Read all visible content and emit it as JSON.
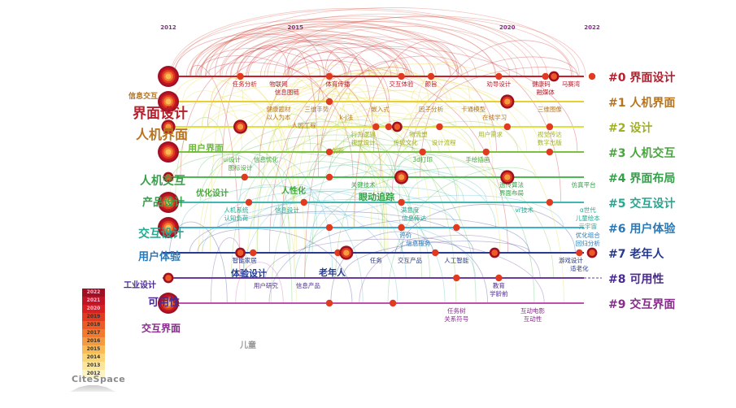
{
  "chart_data": {
    "type": "timeline",
    "title": "",
    "x_axis": {
      "ticks": [
        "2012",
        "2015",
        "2020",
        "2022"
      ],
      "range": [
        2012,
        2022
      ]
    },
    "clusters": [
      {
        "id": "#0",
        "label": "界面设计",
        "color": "#b5202e",
        "line": "#c8202a"
      },
      {
        "id": "#1",
        "label": "人机界面",
        "color": "#b8741c",
        "line": "#e8d030"
      },
      {
        "id": "#2",
        "label": "设计",
        "color": "#a0b025",
        "line": "#e0e040"
      },
      {
        "id": "#3",
        "label": "人机交互",
        "color": "#45a83a",
        "line": "#7cc040"
      },
      {
        "id": "#4",
        "label": "界面布局",
        "color": "#35a04a",
        "line": "#4cb850"
      },
      {
        "id": "#5",
        "label": "交互设计",
        "color": "#25a890",
        "line": "#40b8b0"
      },
      {
        "id": "#6",
        "label": "用户体验",
        "color": "#2a78b5",
        "line": "#40b0d0"
      },
      {
        "id": "#7",
        "label": "老年人",
        "color": "#253a8f",
        "line": "#2a3a90"
      },
      {
        "id": "#8",
        "label": "可用性",
        "color": "#4a2a8f",
        "line": "#6a3aa0"
      },
      {
        "id": "#9",
        "label": "交互界面",
        "color": "#8a2a8f",
        "line": "#c050b0"
      }
    ],
    "nodes": [
      {
        "cluster": 0,
        "year": 2012,
        "weight": 5
      },
      {
        "cluster": 0,
        "year": 2013.7,
        "weight": 1
      },
      {
        "cluster": 0,
        "year": 2015.8,
        "weight": 1
      },
      {
        "cluster": 0,
        "year": 2017.5,
        "weight": 1
      },
      {
        "cluster": 0,
        "year": 2018.2,
        "weight": 1
      },
      {
        "cluster": 0,
        "year": 2019.8,
        "weight": 1
      },
      {
        "cluster": 0,
        "year": 2020.9,
        "weight": 1
      },
      {
        "cluster": 0,
        "year": 2021.1,
        "weight": 2
      },
      {
        "cluster": 0,
        "year": 2022,
        "weight": 1
      },
      {
        "cluster": 1,
        "year": 2012,
        "weight": 5
      },
      {
        "cluster": 1,
        "year": 2015.8,
        "weight": 1
      },
      {
        "cluster": 1,
        "year": 2020,
        "weight": 3
      },
      {
        "cluster": 2,
        "year": 2012,
        "weight": 3
      },
      {
        "cluster": 2,
        "year": 2013.7,
        "weight": 3
      },
      {
        "cluster": 2,
        "year": 2016.9,
        "weight": 1
      },
      {
        "cluster": 2,
        "year": 2017.2,
        "weight": 1
      },
      {
        "cluster": 2,
        "year": 2017.4,
        "weight": 2
      },
      {
        "cluster": 2,
        "year": 2018.4,
        "weight": 1
      },
      {
        "cluster": 2,
        "year": 2020,
        "weight": 1
      },
      {
        "cluster": 2,
        "year": 2021,
        "weight": 1
      },
      {
        "cluster": 3,
        "year": 2012,
        "weight": 5
      },
      {
        "cluster": 3,
        "year": 2015.8,
        "weight": 1
      },
      {
        "cluster": 3,
        "year": 2018,
        "weight": 1
      },
      {
        "cluster": 3,
        "year": 2019.5,
        "weight": 1
      },
      {
        "cluster": 3,
        "year": 2021,
        "weight": 1
      },
      {
        "cluster": 4,
        "year": 2012,
        "weight": 2
      },
      {
        "cluster": 4,
        "year": 2013.8,
        "weight": 1
      },
      {
        "cluster": 4,
        "year": 2015.8,
        "weight": 1
      },
      {
        "cluster": 4,
        "year": 2017.5,
        "weight": 3
      },
      {
        "cluster": 4,
        "year": 2020,
        "weight": 3
      },
      {
        "cluster": 5,
        "year": 2012,
        "weight": 5
      },
      {
        "cluster": 5,
        "year": 2013.9,
        "weight": 1
      },
      {
        "cluster": 5,
        "year": 2015.2,
        "weight": 1
      },
      {
        "cluster": 5,
        "year": 2017.5,
        "weight": 1
      },
      {
        "cluster": 5,
        "year": 2021,
        "weight": 1
      },
      {
        "cluster": 6,
        "year": 2012,
        "weight": 5
      },
      {
        "cluster": 6,
        "year": 2015.8,
        "weight": 1
      },
      {
        "cluster": 6,
        "year": 2017.5,
        "weight": 1
      },
      {
        "cluster": 6,
        "year": 2018.8,
        "weight": 1
      },
      {
        "cluster": 7,
        "year": 2013.7,
        "weight": 2
      },
      {
        "cluster": 7,
        "year": 2014,
        "weight": 1
      },
      {
        "cluster": 7,
        "year": 2016,
        "weight": 1
      },
      {
        "cluster": 7,
        "year": 2016.2,
        "weight": 3
      },
      {
        "cluster": 7,
        "year": 2018.3,
        "weight": 1
      },
      {
        "cluster": 7,
        "year": 2019.7,
        "weight": 2
      },
      {
        "cluster": 7,
        "year": 2021.7,
        "weight": 1
      },
      {
        "cluster": 7,
        "year": 2022,
        "weight": 2
      },
      {
        "cluster": 8,
        "year": 2012,
        "weight": 2
      },
      {
        "cluster": 8,
        "year": 2018.8,
        "weight": 1
      },
      {
        "cluster": 8,
        "year": 2019.8,
        "weight": 1
      },
      {
        "cluster": 9,
        "year": 2012,
        "weight": 5
      },
      {
        "cluster": 9,
        "year": 2015.8,
        "weight": 1
      },
      {
        "cluster": 9,
        "year": 2017.3,
        "weight": 1
      }
    ],
    "labels": [
      {
        "cluster": 0,
        "year": 2013.8,
        "text": "任务分析"
      },
      {
        "cluster": 0,
        "year": 2014.6,
        "text": "物联网"
      },
      {
        "cluster": 0,
        "year": 2014.8,
        "text": "信息图链"
      },
      {
        "cluster": 0,
        "year": 2016.0,
        "text": "体育传播"
      },
      {
        "cluster": 0,
        "year": 2017.5,
        "text": "交互体验"
      },
      {
        "cluster": 0,
        "year": 2018.2,
        "text": "颜旨"
      },
      {
        "cluster": 0,
        "year": 2019.8,
        "text": "劝导设计"
      },
      {
        "cluster": 0,
        "year": 2020.8,
        "text": "健康码"
      },
      {
        "cluster": 0,
        "year": 2020.9,
        "text": "融媒体"
      },
      {
        "cluster": 0,
        "year": 2021.5,
        "text": "马赛湾"
      },
      {
        "cluster": 1,
        "year": 2014.6,
        "text": "健康题材"
      },
      {
        "cluster": 1,
        "year": 2014.6,
        "text": "以人为本"
      },
      {
        "cluster": 1,
        "year": 2015.5,
        "text": "三维手势"
      },
      {
        "cluster": 1,
        "year": 2015.2,
        "text": "人因工程"
      },
      {
        "cluster": 1,
        "year": 2016.2,
        "text": "k-j法"
      },
      {
        "cluster": 1,
        "year": 2017.0,
        "text": "嵌入式"
      },
      {
        "cluster": 1,
        "year": 2018.2,
        "text": "因子分析"
      },
      {
        "cluster": 1,
        "year": 2019.2,
        "text": "卡通模型"
      },
      {
        "cluster": 1,
        "year": 2019.7,
        "text": "在线学习"
      },
      {
        "cluster": 1,
        "year": 2021.0,
        "text": "三维图像"
      },
      {
        "cluster": 2,
        "year": 2016.6,
        "text": "行为逻辑"
      },
      {
        "cluster": 2,
        "year": 2016.6,
        "text": "视觉设计"
      },
      {
        "cluster": 2,
        "year": 2017.9,
        "text": "物流塑"
      },
      {
        "cluster": 2,
        "year": 2016.0,
        "text": "创新"
      },
      {
        "cluster": 2,
        "year": 2017.6,
        "text": "传统文化"
      },
      {
        "cluster": 2,
        "year": 2019.6,
        "text": "用户需求"
      },
      {
        "cluster": 2,
        "year": 2018.5,
        "text": "设计流程"
      },
      {
        "cluster": 2,
        "year": 2021.0,
        "text": "视觉传达"
      },
      {
        "cluster": 2,
        "year": 2021.0,
        "text": "数字出版"
      },
      {
        "cluster": 3,
        "year": 2013.5,
        "text": "ui设计"
      },
      {
        "cluster": 3,
        "year": 2013.7,
        "text": "图标设计"
      },
      {
        "cluster": 3,
        "year": 2014.3,
        "text": "信息优化"
      },
      {
        "cluster": 3,
        "year": 2018.0,
        "text": "3d打印"
      },
      {
        "cluster": 3,
        "year": 2019.3,
        "text": "手绘插画"
      },
      {
        "cluster": 4,
        "year": 2016.6,
        "text": "关键技术"
      },
      {
        "cluster": 4,
        "year": 2020.1,
        "text": "遗传算法"
      },
      {
        "cluster": 4,
        "year": 2020.1,
        "text": "界面布局"
      },
      {
        "cluster": 4,
        "year": 2021.8,
        "text": "仿真平台"
      },
      {
        "cluster": 5,
        "year": 2013.6,
        "text": "人机系统"
      },
      {
        "cluster": 5,
        "year": 2013.6,
        "text": "认知负荷"
      },
      {
        "cluster": 5,
        "year": 2014.8,
        "text": "信息设计"
      },
      {
        "cluster": 5,
        "year": 2017.7,
        "text": "满意度"
      },
      {
        "cluster": 5,
        "year": 2017.8,
        "text": "信息传达"
      },
      {
        "cluster": 5,
        "year": 2020.4,
        "text": "vr技术"
      },
      {
        "cluster": 5,
        "year": 2021.9,
        "text": "α世代"
      },
      {
        "cluster": 5,
        "year": 2021.9,
        "text": "儿童绘本"
      },
      {
        "cluster": 5,
        "year": 2021.9,
        "text": "元宇宙"
      },
      {
        "cluster": 6,
        "year": 2017.6,
        "text": "评价"
      },
      {
        "cluster": 6,
        "year": 2017.9,
        "text": "信息服务"
      },
      {
        "cluster": 6,
        "year": 2021.9,
        "text": "优化组合"
      },
      {
        "cluster": 6,
        "year": 2021.9,
        "text": "回归分析"
      },
      {
        "cluster": 7,
        "year": 2013.8,
        "text": "智能家居"
      },
      {
        "cluster": 7,
        "year": 2016.9,
        "text": "任务"
      },
      {
        "cluster": 7,
        "year": 2017.7,
        "text": "交互产品"
      },
      {
        "cluster": 7,
        "year": 2018.8,
        "text": "人工智能"
      },
      {
        "cluster": 7,
        "year": 2021.5,
        "text": "游戏设计"
      },
      {
        "cluster": 7,
        "year": 2021.7,
        "text": "适老化"
      },
      {
        "cluster": 8,
        "year": 2014.3,
        "text": "用户研究"
      },
      {
        "cluster": 8,
        "year": 2015.3,
        "text": "信息产品"
      },
      {
        "cluster": 8,
        "year": 2019.8,
        "text": "教育"
      },
      {
        "cluster": 8,
        "year": 2019.8,
        "text": "学龄前"
      },
      {
        "cluster": 9,
        "year": 2018.8,
        "text": "任务树"
      },
      {
        "cluster": 9,
        "year": 2018.8,
        "text": "关系符号"
      },
      {
        "cluster": 9,
        "year": 2020.6,
        "text": "互动电影"
      },
      {
        "cluster": 9,
        "year": 2020.6,
        "text": "互动性"
      }
    ],
    "big_labels": [
      {
        "text": "界面设计",
        "color": "#b5202e"
      },
      {
        "text": "人机界面",
        "color": "#b8741c"
      },
      {
        "text": "用户界面",
        "color": "#6ab83a"
      },
      {
        "text": "人机交互",
        "color": "#35a04a"
      },
      {
        "text": "产品设计",
        "color": "#35a04a"
      },
      {
        "text": "优化设计",
        "color": "#45a83a"
      },
      {
        "text": "人性化",
        "color": "#45a83a"
      },
      {
        "text": "眼动追踪",
        "color": "#35a04a"
      },
      {
        "text": "交互设计",
        "color": "#25a890"
      },
      {
        "text": "用户体验",
        "color": "#2a78b5"
      },
      {
        "text": "体验设计",
        "color": "#253a8f"
      },
      {
        "text": "老年人",
        "color": "#253a8f"
      },
      {
        "text": "工业设计",
        "color": "#4a2a8f"
      },
      {
        "text": "可用性",
        "color": "#4a2a8f"
      },
      {
        "text": "交互界面",
        "color": "#8a2a8f"
      },
      {
        "text": "信息交互",
        "color": "#b8741c"
      },
      {
        "text": "儿童",
        "color": "#999999"
      }
    ],
    "legend": {
      "years": [
        "2022",
        "2021",
        "2020",
        "2019",
        "2018",
        "2017",
        "2016",
        "2015",
        "2014",
        "2013",
        "2012"
      ],
      "colors": [
        "#a01020",
        "#c01525",
        "#d82020",
        "#e03a20",
        "#ec5a25",
        "#f07a30",
        "#f49a40",
        "#f8bb55",
        "#fad577",
        "#fbe59a",
        "#fcf3c4"
      ]
    },
    "logo": "CiteSpace"
  }
}
